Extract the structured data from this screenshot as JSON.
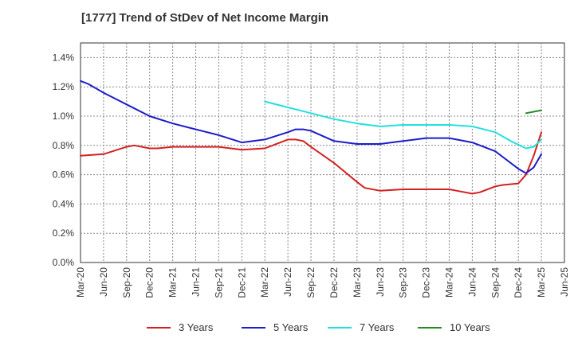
{
  "chart_data": {
    "type": "line",
    "title": "[1777]  Trend of StDev of Net Income Margin",
    "xlabel": "",
    "ylabel": "",
    "ylim": [
      0,
      1.5
    ],
    "yticks": [
      "0.0%",
      "0.2%",
      "0.4%",
      "0.6%",
      "0.8%",
      "1.0%",
      "1.2%",
      "1.4%"
    ],
    "xticks": [
      "Mar-20",
      "Jun-20",
      "Sep-20",
      "Dec-20",
      "Mar-21",
      "Jun-21",
      "Sep-21",
      "Dec-21",
      "Mar-22",
      "Jun-22",
      "Sep-22",
      "Dec-22",
      "Mar-23",
      "Jun-23",
      "Sep-23",
      "Dec-23",
      "Mar-24",
      "Jun-24",
      "Sep-24",
      "Dec-24",
      "Mar-25",
      "Jun-25"
    ],
    "grid": true,
    "legend_position": "bottom",
    "series": [
      {
        "name": "3 Years",
        "color": "#d42020",
        "points": [
          [
            "Mar-20",
            0.73
          ],
          [
            "Jun-20",
            0.74
          ],
          [
            "Sep-20",
            0.79
          ],
          [
            "Oct-20",
            0.8
          ],
          [
            "Dec-20",
            0.78
          ],
          [
            "Jan-21",
            0.78
          ],
          [
            "Mar-21",
            0.79
          ],
          [
            "Jun-21",
            0.79
          ],
          [
            "Sep-21",
            0.79
          ],
          [
            "Dec-21",
            0.77
          ],
          [
            "Mar-22",
            0.78
          ],
          [
            "Apr-22",
            0.8
          ],
          [
            "Jun-22",
            0.84
          ],
          [
            "Jul-22",
            0.84
          ],
          [
            "Aug-22",
            0.83
          ],
          [
            "Sep-22",
            0.79
          ],
          [
            "Dec-22",
            0.68
          ],
          [
            "Mar-23",
            0.55
          ],
          [
            "Apr-23",
            0.51
          ],
          [
            "Jun-23",
            0.49
          ],
          [
            "Sep-23",
            0.5
          ],
          [
            "Dec-23",
            0.5
          ],
          [
            "Mar-24",
            0.5
          ],
          [
            "Apr-24",
            0.49
          ],
          [
            "Jun-24",
            0.47
          ],
          [
            "Jul-24",
            0.48
          ],
          [
            "Sep-24",
            0.52
          ],
          [
            "Oct-24",
            0.53
          ],
          [
            "Dec-24",
            0.54
          ],
          [
            "Jan-25",
            0.6
          ],
          [
            "Feb-25",
            0.73
          ],
          [
            "Mar-25",
            0.89
          ]
        ]
      },
      {
        "name": "5 Years",
        "color": "#1c1cc8",
        "points": [
          [
            "Mar-20",
            1.24
          ],
          [
            "Apr-20",
            1.22
          ],
          [
            "Jun-20",
            1.16
          ],
          [
            "Sep-20",
            1.08
          ],
          [
            "Dec-20",
            1.0
          ],
          [
            "Mar-21",
            0.95
          ],
          [
            "Jun-21",
            0.91
          ],
          [
            "Sep-21",
            0.87
          ],
          [
            "Dec-21",
            0.82
          ],
          [
            "Mar-22",
            0.84
          ],
          [
            "Jun-22",
            0.89
          ],
          [
            "Jul-22",
            0.91
          ],
          [
            "Aug-22",
            0.91
          ],
          [
            "Sep-22",
            0.9
          ],
          [
            "Dec-22",
            0.83
          ],
          [
            "Mar-23",
            0.81
          ],
          [
            "Jun-23",
            0.81
          ],
          [
            "Sep-23",
            0.83
          ],
          [
            "Dec-23",
            0.85
          ],
          [
            "Mar-24",
            0.85
          ],
          [
            "Jun-24",
            0.82
          ],
          [
            "Sep-24",
            0.76
          ],
          [
            "Oct-24",
            0.72
          ],
          [
            "Dec-24",
            0.64
          ],
          [
            "Jan-25",
            0.61
          ],
          [
            "Feb-25",
            0.65
          ],
          [
            "Mar-25",
            0.74
          ]
        ]
      },
      {
        "name": "7 Years",
        "color": "#22e0e0",
        "points": [
          [
            "Mar-22",
            1.1
          ],
          [
            "Jun-22",
            1.06
          ],
          [
            "Sep-22",
            1.02
          ],
          [
            "Dec-22",
            0.98
          ],
          [
            "Mar-23",
            0.95
          ],
          [
            "Jun-23",
            0.93
          ],
          [
            "Sep-23",
            0.94
          ],
          [
            "Dec-23",
            0.94
          ],
          [
            "Mar-24",
            0.94
          ],
          [
            "Jun-24",
            0.93
          ],
          [
            "Sep-24",
            0.89
          ],
          [
            "Nov-24",
            0.83
          ],
          [
            "Jan-25",
            0.78
          ],
          [
            "Feb-25",
            0.79
          ],
          [
            "Mar-25",
            0.84
          ]
        ]
      },
      {
        "name": "10 Years",
        "color": "#228b22",
        "points": [
          [
            "Jan-25",
            1.02
          ],
          [
            "Mar-25",
            1.04
          ]
        ]
      }
    ]
  }
}
